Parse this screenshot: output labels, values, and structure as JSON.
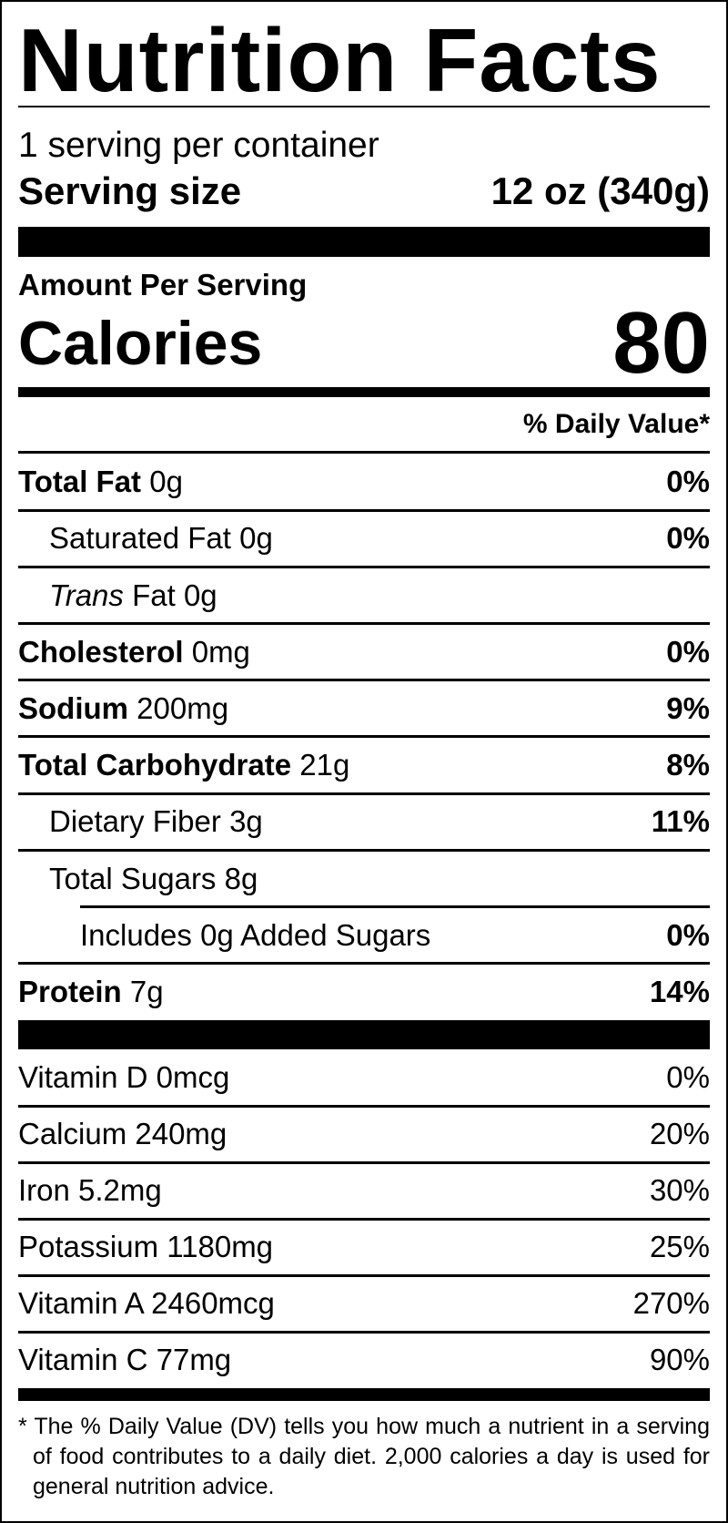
{
  "title": "Nutrition Facts",
  "servings_per_container": "1 serving per container",
  "serving_size": {
    "label": "Serving size",
    "value": "12 oz (340g)"
  },
  "amount_per_serving": "Amount Per Serving",
  "calories": {
    "label": "Calories",
    "value": "80"
  },
  "daily_value_header": "% Daily Value*",
  "nutrients": [
    {
      "name": "Total Fat",
      "amount": "0g",
      "dv": "0%",
      "bold": true,
      "indent": 0
    },
    {
      "name": "Saturated Fat",
      "amount": "0g",
      "dv": "0%",
      "bold": false,
      "indent": 1
    },
    {
      "name": "Trans",
      "name_suffix": "Fat",
      "amount": "0g",
      "dv": "",
      "bold": false,
      "indent": 1,
      "italic_name": true
    },
    {
      "name": "Cholesterol",
      "amount": "0mg",
      "dv": "0%",
      "bold": true,
      "indent": 0
    },
    {
      "name": "Sodium",
      "amount": "200mg",
      "dv": "9%",
      "bold": true,
      "indent": 0
    },
    {
      "name": "Total Carbohydrate",
      "amount": "21g",
      "dv": "8%",
      "bold": true,
      "indent": 0
    },
    {
      "name": "Dietary Fiber",
      "amount": "3g",
      "dv": "11%",
      "bold": false,
      "indent": 1
    },
    {
      "name": "Total Sugars",
      "amount": "8g",
      "dv": "",
      "bold": false,
      "indent": 1
    },
    {
      "name": "Includes 0g Added Sugars",
      "amount": "",
      "dv": "0%",
      "bold": false,
      "indent": 2
    },
    {
      "name": "Protein",
      "amount": "7g",
      "dv": "14%",
      "bold": true,
      "indent": 0
    }
  ],
  "vitamins": [
    {
      "name": "Vitamin D 0mcg",
      "dv": "0%"
    },
    {
      "name": "Calcium 240mg",
      "dv": "20%"
    },
    {
      "name": "Iron 5.2mg",
      "dv": "30%"
    },
    {
      "name": "Potassium 1180mg",
      "dv": "25%"
    },
    {
      "name": "Vitamin A 2460mcg",
      "dv": "270%"
    },
    {
      "name": "Vitamin C 77mg",
      "dv": "90%"
    }
  ],
  "footnote": "* The % Daily Value (DV) tells you how much a nutrient in a serving of food contributes to a daily diet. 2,000 calories a day is used for general nutrition advice."
}
